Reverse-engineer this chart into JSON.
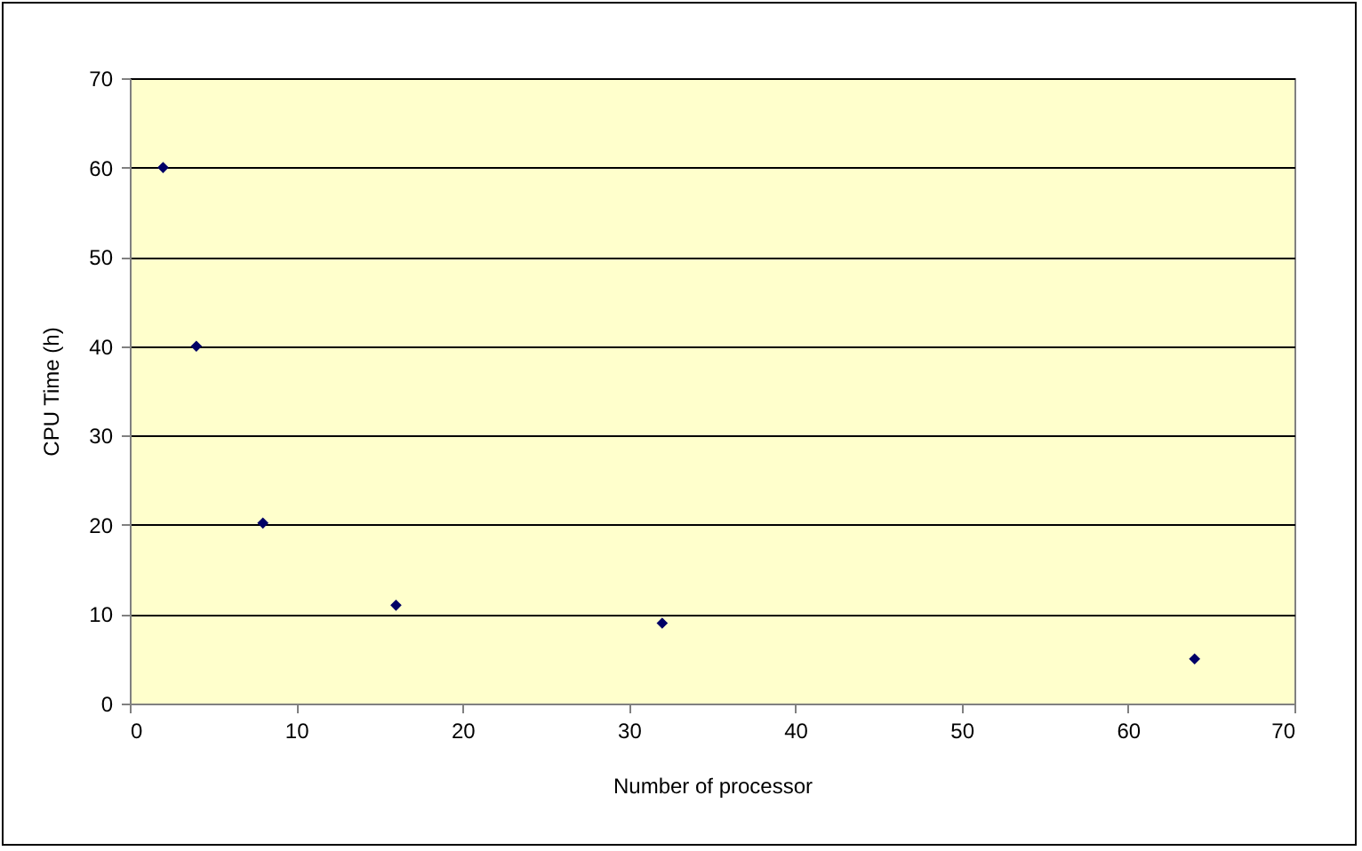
{
  "chart_data": {
    "type": "scatter",
    "xlabel": "Number of processor",
    "ylabel": "CPU Time (h)",
    "x": [
      2,
      4,
      8,
      16,
      32,
      64
    ],
    "series": [
      {
        "color": "#000066",
        "values": [
          60,
          40,
          20.2,
          11,
          9,
          5
        ]
      }
    ],
    "xlim": [
      0,
      70
    ],
    "xticks": [
      0,
      10,
      20,
      30,
      40,
      50,
      60,
      70
    ],
    "ylim": [
      0,
      70
    ],
    "yticks": [
      0,
      10,
      20,
      30,
      40,
      50,
      60,
      70
    ],
    "grid": "y",
    "marker": "diamond"
  }
}
